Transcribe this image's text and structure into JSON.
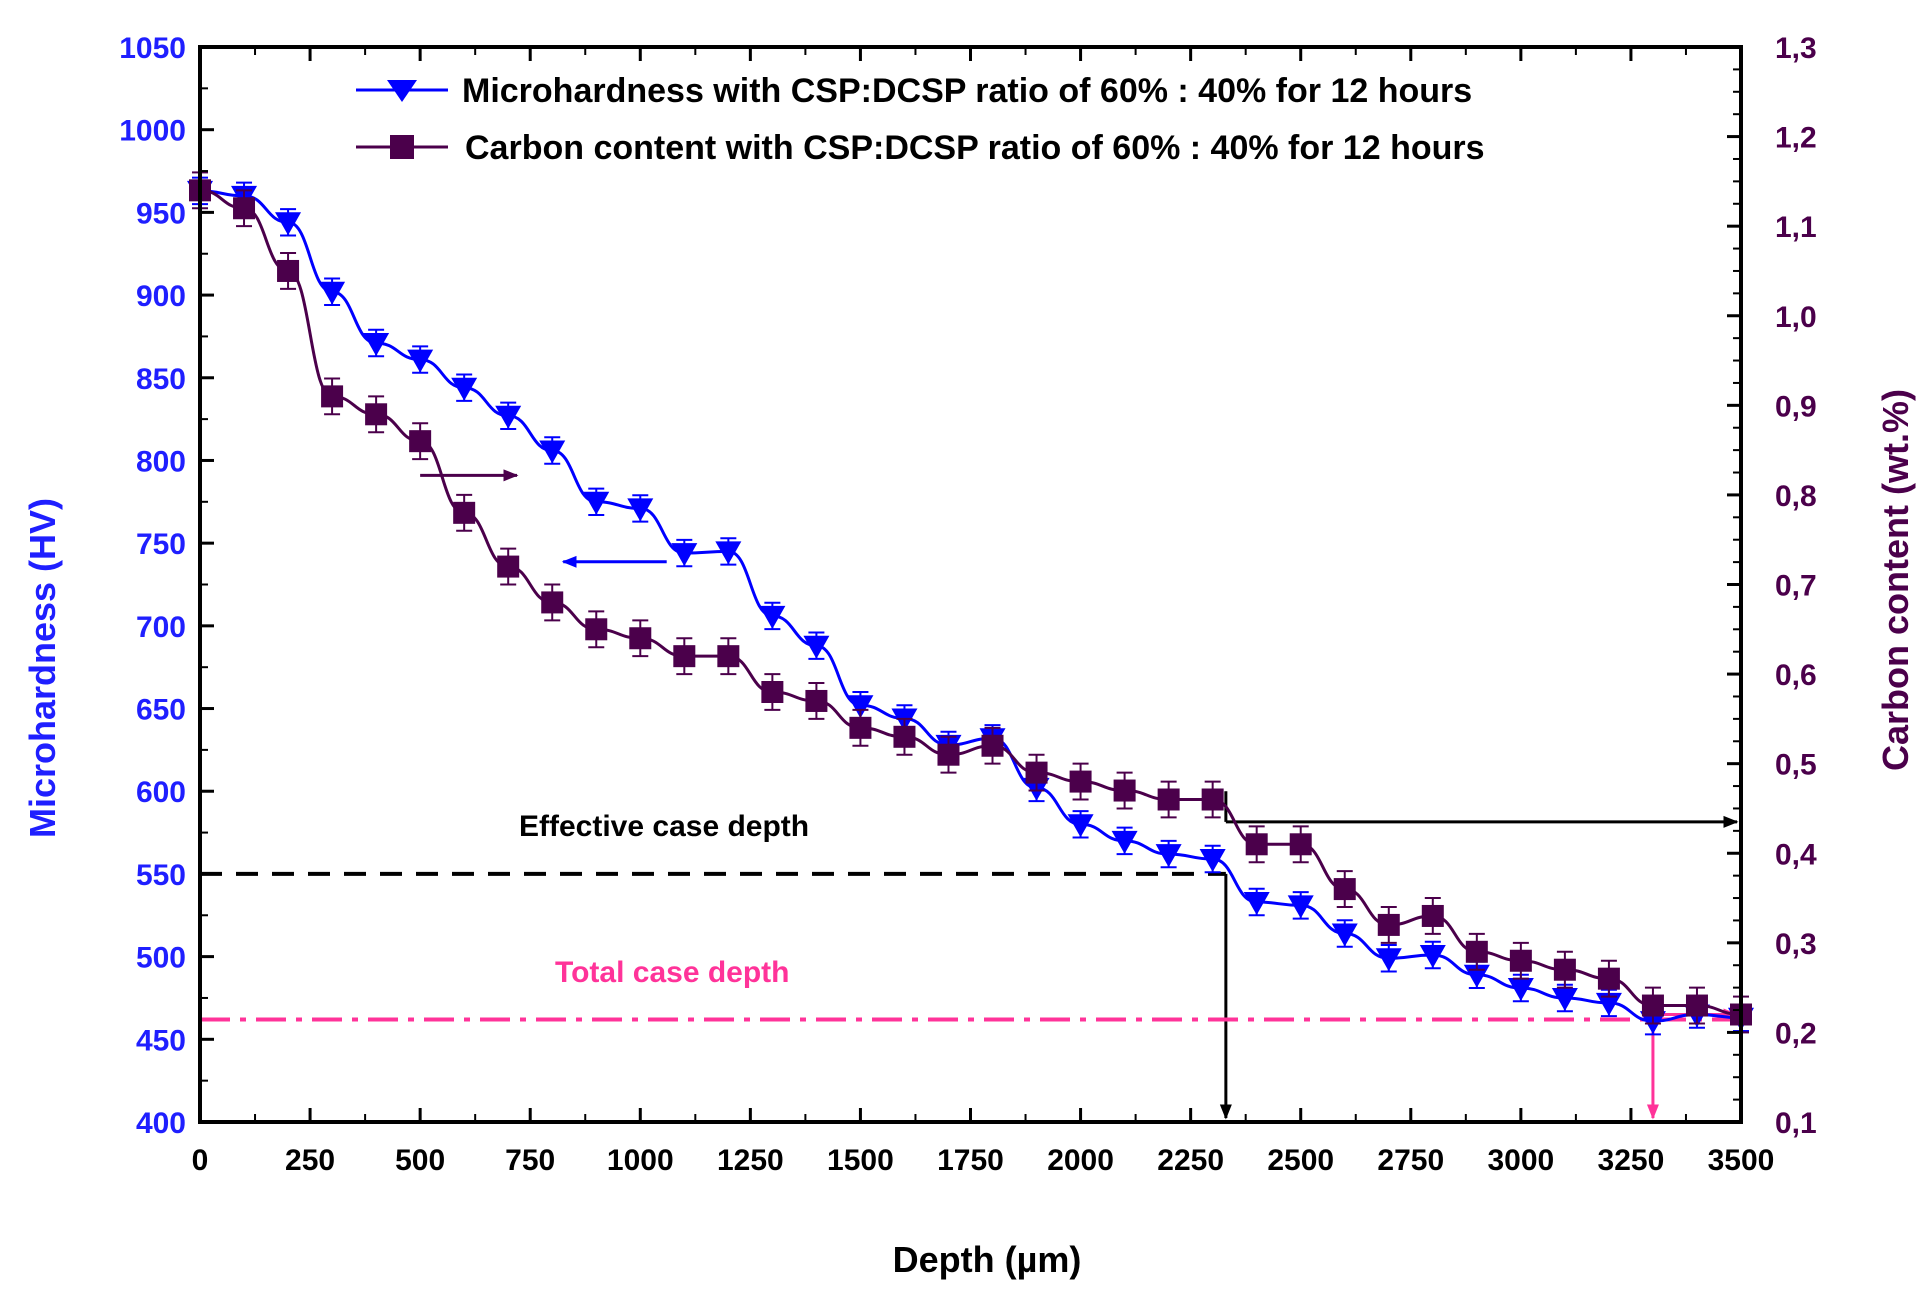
{
  "chart_data": {
    "type": "line",
    "xlabel": "Depth (µm)",
    "ylabel_left": "Microhardness (HV)",
    "ylabel_right": "Carbon content (wt.%)",
    "xlim": [
      0,
      3500
    ],
    "ylim_left": [
      400,
      1050
    ],
    "ylim_right": [
      0.1,
      1.3
    ],
    "x_ticks": [
      0,
      250,
      500,
      750,
      1000,
      1250,
      1500,
      1750,
      2000,
      2250,
      2500,
      2750,
      3000,
      3250,
      3500
    ],
    "y_left_ticks": [
      400,
      450,
      500,
      550,
      600,
      650,
      700,
      750,
      800,
      850,
      900,
      950,
      1000,
      1050
    ],
    "y_right_ticks": [
      "0,1",
      "0,2",
      "0,3",
      "0,4",
      "0,5",
      "0,6",
      "0,7",
      "0,8",
      "0,9",
      "1,0",
      "1,1",
      "1,2",
      "1,3"
    ],
    "x": [
      0,
      100,
      200,
      300,
      400,
      500,
      600,
      700,
      800,
      900,
      1000,
      1100,
      1200,
      1300,
      1400,
      1500,
      1600,
      1700,
      1800,
      1900,
      2000,
      2100,
      2200,
      2300,
      2400,
      2500,
      2600,
      2700,
      2800,
      2900,
      3000,
      3100,
      3200,
      3300,
      3400,
      3500
    ],
    "series": [
      {
        "name": "Microhardness with CSP:DCSP ratio of 60% : 40% for 12 hours",
        "axis": "left",
        "color": "#0000ff",
        "marker": "triangle-down",
        "values": [
          963,
          960,
          944,
          902,
          871,
          861,
          844,
          827,
          806,
          775,
          771,
          744,
          745,
          706,
          688,
          652,
          644,
          628,
          632,
          602,
          580,
          570,
          562,
          559,
          533,
          531,
          514,
          499,
          501,
          489,
          481,
          475,
          472,
          461,
          465,
          463
        ],
        "error": 8
      },
      {
        "name": "Carbon content with CSP:DCSP ratio of 60% : 40% for 12 hours",
        "axis": "right",
        "color": "#4b004b",
        "marker": "square",
        "values": [
          1.14,
          1.12,
          1.05,
          0.91,
          0.89,
          0.86,
          0.78,
          0.72,
          0.68,
          0.65,
          0.64,
          0.62,
          0.62,
          0.58,
          0.57,
          0.54,
          0.53,
          0.51,
          0.52,
          0.49,
          0.48,
          0.47,
          0.46,
          0.46,
          0.41,
          0.41,
          0.36,
          0.32,
          0.33,
          0.29,
          0.28,
          0.27,
          0.26,
          0.23,
          0.23,
          0.22
        ],
        "error": 0.02
      }
    ],
    "annotations": {
      "effective_case_depth": {
        "label": "Effective case depth",
        "hardness": 550,
        "depth": 2330,
        "color": "#000000"
      },
      "total_case_depth": {
        "label": "Total case depth",
        "hardness": 462,
        "depth": 3300,
        "color": "#ff3399"
      }
    },
    "legend": "top-right"
  }
}
